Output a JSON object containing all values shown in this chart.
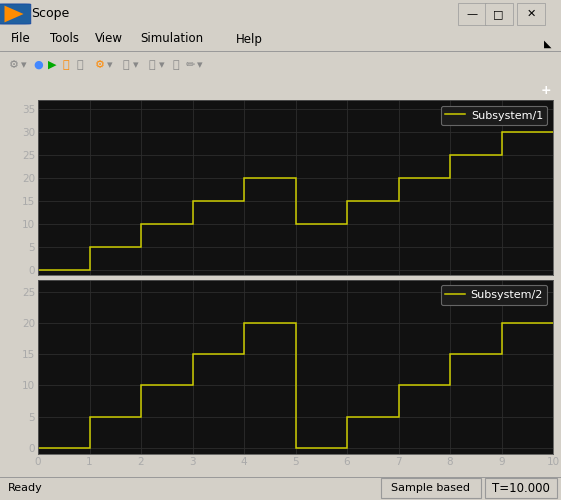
{
  "bg_color": "#111111",
  "line_color": "#CCCC00",
  "grid_color": "#2a2a2a",
  "axis_text_color": "#AAAAAA",
  "label_color": "#FFFFFF",
  "plot1": {
    "label": "Subsystem/1",
    "x": [
      0,
      1,
      1,
      2,
      2,
      3,
      3,
      4,
      4,
      5,
      5,
      6,
      6,
      7,
      7,
      8,
      8,
      9,
      9,
      10
    ],
    "y": [
      0,
      0,
      5,
      5,
      10,
      10,
      15,
      15,
      20,
      20,
      10,
      10,
      15,
      15,
      20,
      20,
      25,
      25,
      30,
      30
    ],
    "ylim": [
      -1,
      37
    ],
    "yticks": [
      0,
      5,
      10,
      15,
      20,
      25,
      30,
      35
    ]
  },
  "plot2": {
    "label": "Subsystem/2",
    "x": [
      0,
      1,
      1,
      2,
      2,
      3,
      3,
      4,
      4,
      5,
      5,
      6,
      6,
      7,
      7,
      8,
      8,
      9,
      9,
      10
    ],
    "y": [
      0,
      0,
      5,
      5,
      10,
      10,
      15,
      15,
      20,
      20,
      0,
      0,
      5,
      5,
      10,
      10,
      15,
      15,
      20,
      20
    ],
    "ylim": [
      -1,
      27
    ],
    "yticks": [
      0,
      5,
      10,
      15,
      20,
      25
    ]
  },
  "xlim": [
    0,
    10
  ],
  "xticks": [
    0,
    1,
    2,
    3,
    4,
    5,
    6,
    7,
    8,
    9,
    10
  ],
  "outer_bg": "#D4D0C8",
  "scope_bg": "#404040",
  "titlebar_bg": "#D4D0C8",
  "titlebar_text": "Scope",
  "statusbar_left": "Ready",
  "statusbar_mid": "Sample based",
  "statusbar_right": "T=10.000",
  "menubar": [
    "File",
    "Tools",
    "View",
    "Simulation",
    "Help"
  ]
}
